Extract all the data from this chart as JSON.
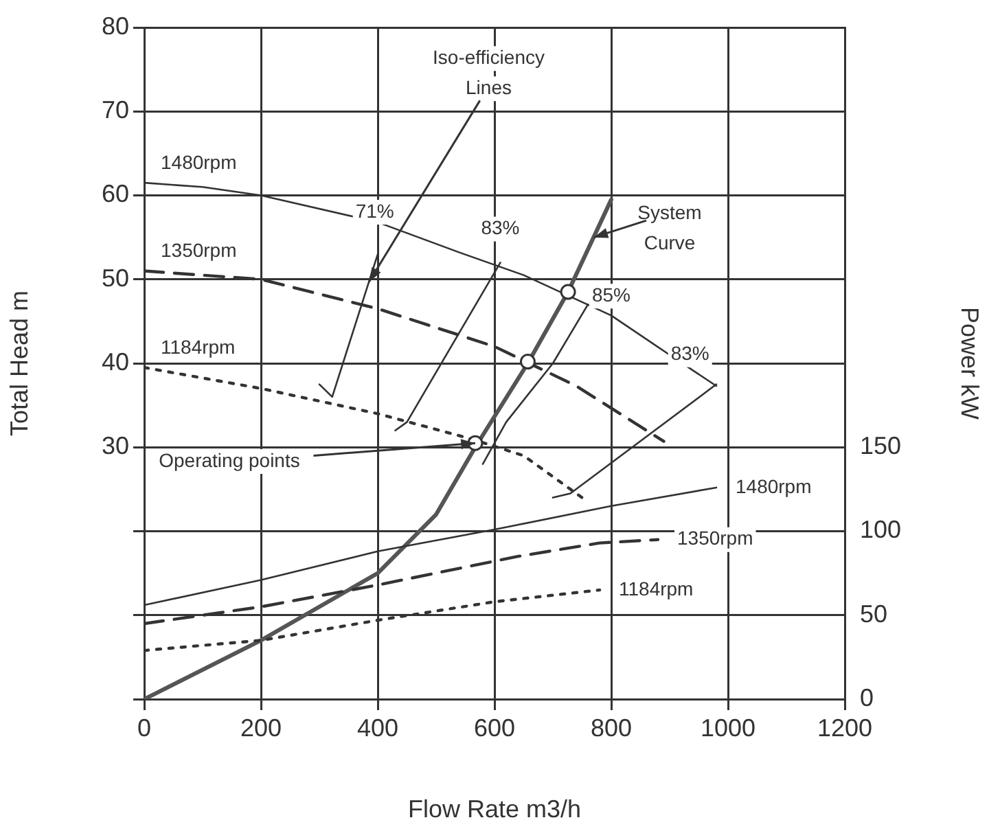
{
  "chart_data": {
    "type": "line",
    "xlabel": "Flow Rate m3/h",
    "ylabel": "Total Head m",
    "y2label": "Power kW",
    "xlim": [
      0,
      1200
    ],
    "xticks": [
      0,
      200,
      400,
      600,
      800,
      1000,
      1200
    ],
    "ylim": [
      0,
      80
    ],
    "yticks": [
      {
        "value": 0,
        "label": null
      },
      {
        "value": 10,
        "label": null
      },
      {
        "value": 20,
        "label": null
      },
      30,
      40,
      50,
      60,
      70,
      80
    ],
    "y2lim": [
      0,
      400
    ],
    "y2ticks": [
      0,
      50,
      100,
      150
    ],
    "grid": true,
    "legend": false,
    "series": [
      {
        "name": "1480rpm",
        "color": "#333333",
        "line_style": "solid",
        "marker": "none",
        "x": [
          0,
          100,
          200,
          400,
          540,
          650,
          800,
          900,
          980
        ],
        "values": [
          61.5,
          61,
          60,
          56.8,
          53.2,
          50.5,
          45.7,
          41,
          37.3
        ]
      },
      {
        "name": "1350rpm",
        "color": "#333333",
        "line_style": "dashed",
        "marker": "none",
        "x": [
          0,
          200,
          400,
          600,
          740,
          890
        ],
        "values": [
          51,
          50,
          46.5,
          42,
          37.3,
          30.7
        ]
      },
      {
        "name": "1184rpm",
        "color": "#333333",
        "line_style": "dotted",
        "marker": "none",
        "x": [
          0,
          200,
          400,
          560,
          650,
          750
        ],
        "values": [
          39.5,
          37,
          34,
          31,
          29,
          24
        ]
      },
      {
        "name": "1480rpm",
        "color": "#333333",
        "line_style": "solid",
        "marker": "none",
        "axis": "y2",
        "x": [
          0,
          200,
          400,
          600,
          800,
          980
        ],
        "values": [
          56,
          71,
          88,
          101,
          115,
          126
        ]
      },
      {
        "name": "1350rpm",
        "color": "#333333",
        "line_style": "dashed",
        "marker": "none",
        "axis": "y2",
        "x": [
          0,
          200,
          400,
          640,
          780,
          880
        ],
        "values": [
          45,
          55,
          68,
          85,
          93,
          95
        ]
      },
      {
        "name": "1184rpm",
        "color": "#333333",
        "line_style": "dotted",
        "marker": "none",
        "axis": "y2",
        "x": [
          0,
          200,
          400,
          600,
          780
        ],
        "values": [
          29,
          35,
          47,
          58,
          65
        ]
      },
      {
        "color": "#555555",
        "line_style": "solid",
        "marker": "none",
        "x": [
          0,
          200,
          400,
          500,
          567,
          657,
          726,
          800
        ],
        "values": [
          0,
          7,
          15,
          22,
          30,
          40,
          48.5,
          59.5
        ]
      },
      {
        "color": "#333333",
        "line_style": "solid",
        "marker": "none",
        "x": [
          300,
          322,
          400
        ],
        "values": [
          37.5,
          36,
          53
        ]
      },
      {
        "color": "#333333",
        "line_style": "solid",
        "marker": "none",
        "x": [
          430,
          450,
          610
        ],
        "values": [
          32,
          33,
          52
        ]
      },
      {
        "color": "#333333",
        "line_style": "solid",
        "marker": "none",
        "x": [
          580,
          620,
          700,
          760
        ],
        "values": [
          28,
          33,
          40,
          47
        ]
      },
      {
        "color": "#333333",
        "line_style": "solid",
        "marker": "none",
        "x": [
          700,
          730,
          980
        ],
        "values": [
          24,
          24.5,
          37.5
        ]
      },
      {
        "type": "scatter",
        "color": "#333333",
        "marker": "circle",
        "x": [
          567,
          657,
          726
        ],
        "values": [
          30.5,
          40.2,
          48.5
        ]
      }
    ],
    "annotations": [
      {
        "text": "Iso-efficiency Lines",
        "x": 385,
        "y": 49.7
      },
      "71%",
      "83%",
      "85%",
      "83%",
      {
        "text": "System Curve",
        "x": 770,
        "y": 55
      },
      {
        "text": "Operating points",
        "x": 567,
        "y": 30.5
      }
    ]
  }
}
